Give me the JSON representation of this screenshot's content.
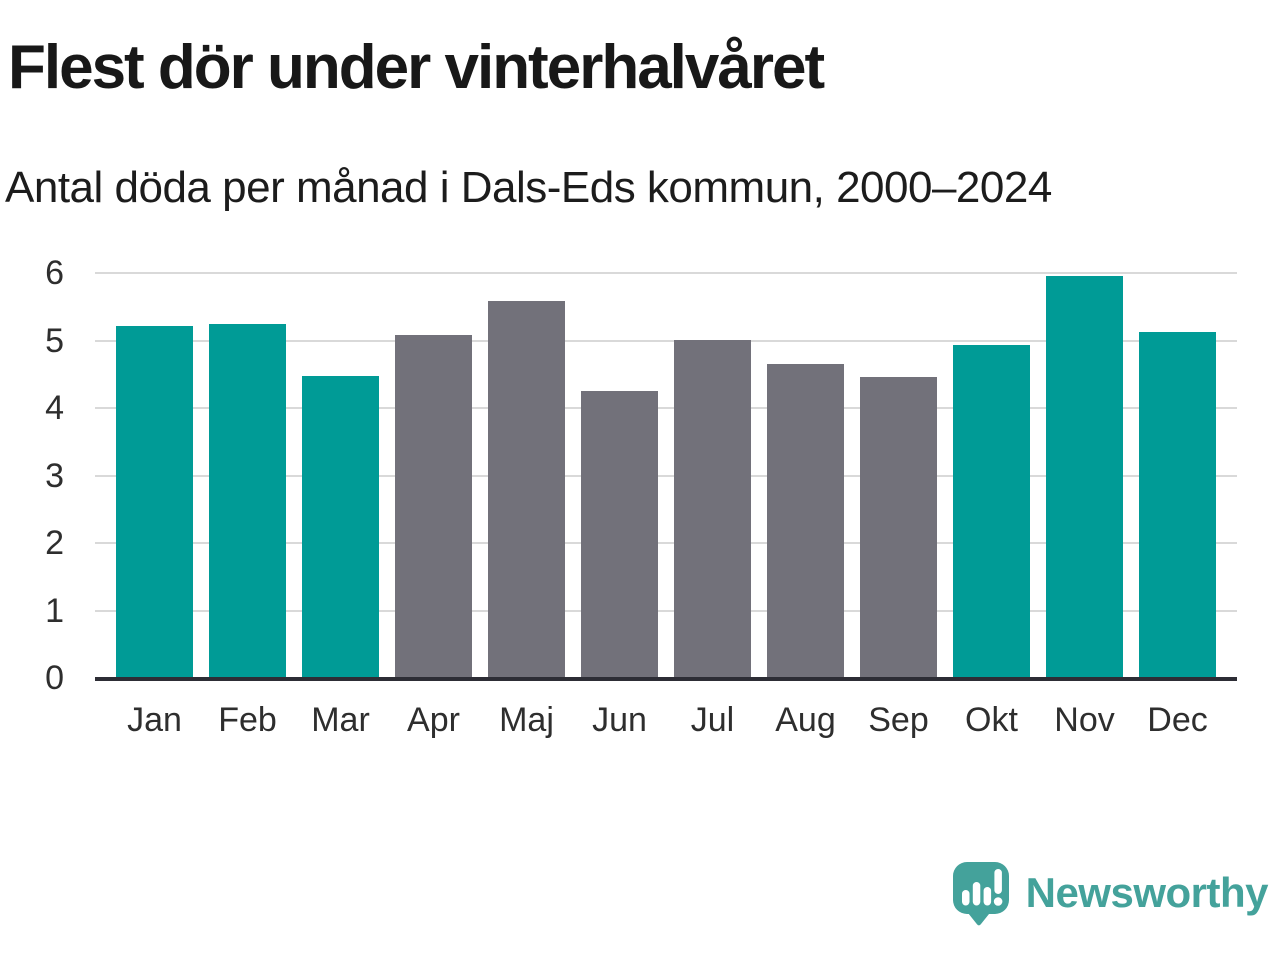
{
  "title": "Flest dör under vinterhalvåret",
  "subtitle": "Antal döda per månad i Dals-Eds kommun, 2000–2024",
  "chart_data": {
    "type": "bar",
    "title": "Flest dör under vinterhalvåret",
    "subtitle": "Antal döda per månad i Dals-Eds kommun, 2000–2024",
    "categories": [
      "Jan",
      "Feb",
      "Mar",
      "Apr",
      "Maj",
      "Jun",
      "Jul",
      "Aug",
      "Sep",
      "Okt",
      "Nov",
      "Dec"
    ],
    "values": [
      5.22,
      5.24,
      4.48,
      5.08,
      5.58,
      4.25,
      5.01,
      4.65,
      4.46,
      4.94,
      5.95,
      5.13
    ],
    "highlighted": [
      true,
      true,
      true,
      false,
      false,
      false,
      false,
      false,
      false,
      true,
      true,
      true
    ],
    "xlabel": "",
    "ylabel": "",
    "ylim": [
      0,
      6
    ],
    "yticks": [
      0,
      1,
      2,
      3,
      4,
      5,
      6
    ],
    "grid": true,
    "legend": "none",
    "colors": {
      "highlight_bar": "#009b96",
      "base_bar": "#72717a",
      "gridline": "#d9d9d9",
      "axis_line": "#2d2d35",
      "tick_text": "#2e2e2e"
    }
  },
  "branding": {
    "logo_text": "Newsworthy",
    "logo_color": "#44a29b"
  }
}
